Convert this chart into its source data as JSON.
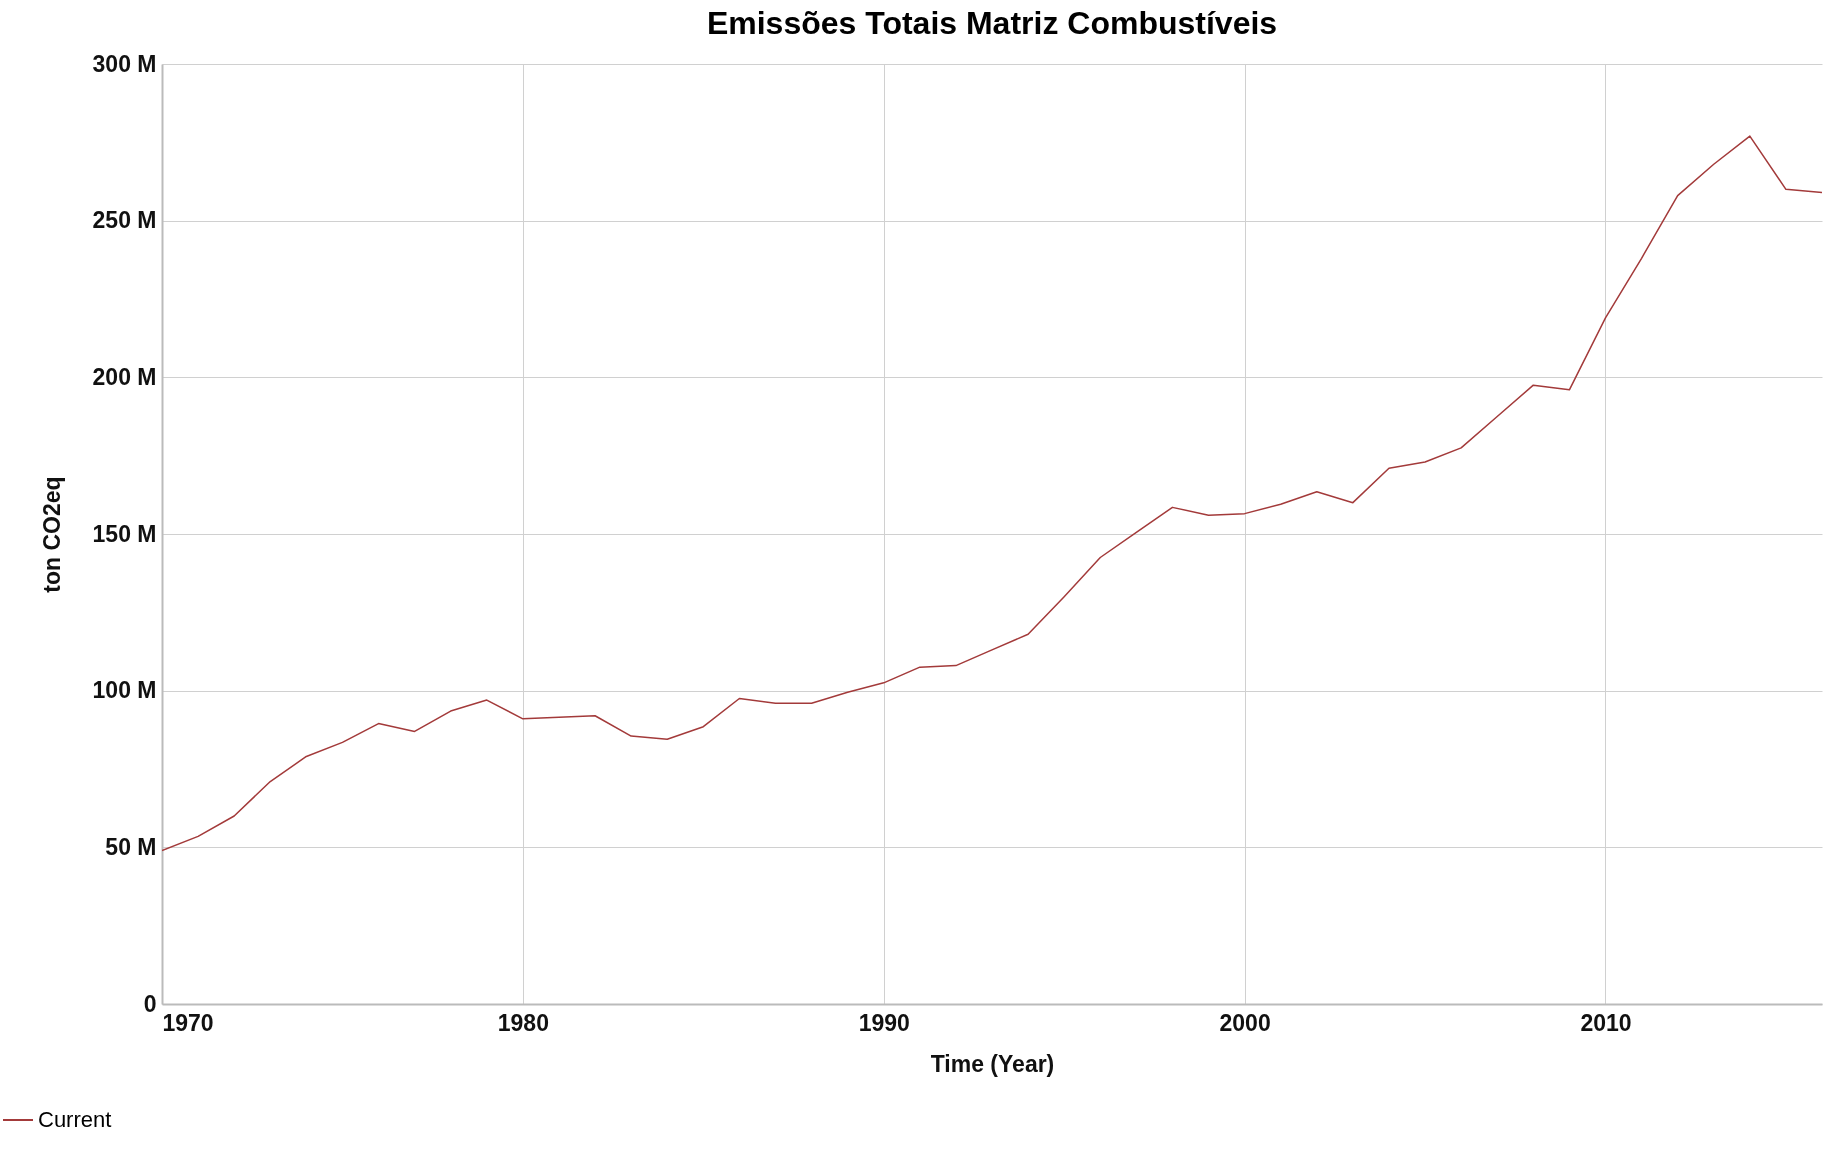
{
  "chart_data": {
    "type": "line",
    "title": "Emissões Totais Matriz Combustíveis",
    "xlabel": "Time (Year)",
    "ylabel": "ton CO2eq",
    "x": [
      1970,
      1971,
      1972,
      1973,
      1974,
      1975,
      1976,
      1977,
      1978,
      1979,
      1980,
      1981,
      1982,
      1983,
      1984,
      1985,
      1986,
      1987,
      1988,
      1989,
      1990,
      1991,
      1992,
      1993,
      1994,
      1995,
      1996,
      1997,
      1998,
      1999,
      2000,
      2001,
      2002,
      2003,
      2004,
      2005,
      2006,
      2007,
      2008,
      2009,
      2010,
      2011,
      2012,
      2013,
      2014,
      2015,
      2016
    ],
    "series": [
      {
        "name": "Current",
        "color": "#a33a3a",
        "values": [
          49000000,
          53500000,
          60000000,
          71000000,
          79000000,
          83500000,
          89500000,
          87000000,
          93500000,
          97000000,
          91000000,
          91500000,
          92000000,
          85500000,
          84500000,
          88500000,
          97500000,
          96000000,
          96000000,
          99500000,
          102500000,
          107500000,
          108000000,
          113000000,
          118000000,
          130000000,
          142500000,
          150500000,
          158500000,
          156000000,
          156500000,
          159500000,
          163500000,
          160000000,
          171000000,
          173000000,
          177500000,
          187500000,
          197500000,
          196000000,
          219000000,
          238000000,
          258000000,
          268000000,
          277000000,
          260000000,
          259000000
        ]
      }
    ],
    "xlim": [
      1970,
      2016
    ],
    "xticks": [
      1970,
      1980,
      1990,
      2000,
      2010
    ],
    "ylim": [
      0,
      300000000
    ],
    "yticks": [
      0,
      {
        "value": 50000000,
        "label": "50 M"
      },
      {
        "value": 100000000,
        "label": "100 M"
      },
      {
        "value": 150000000,
        "label": "150 M"
      },
      {
        "value": 200000000,
        "label": "200 M"
      },
      {
        "value": 250000000,
        "label": "250 M"
      },
      {
        "value": 300000000,
        "label": "300 M"
      }
    ],
    "grid": true,
    "legend": "bottom left",
    "line_style": "solid",
    "marker": "none"
  }
}
